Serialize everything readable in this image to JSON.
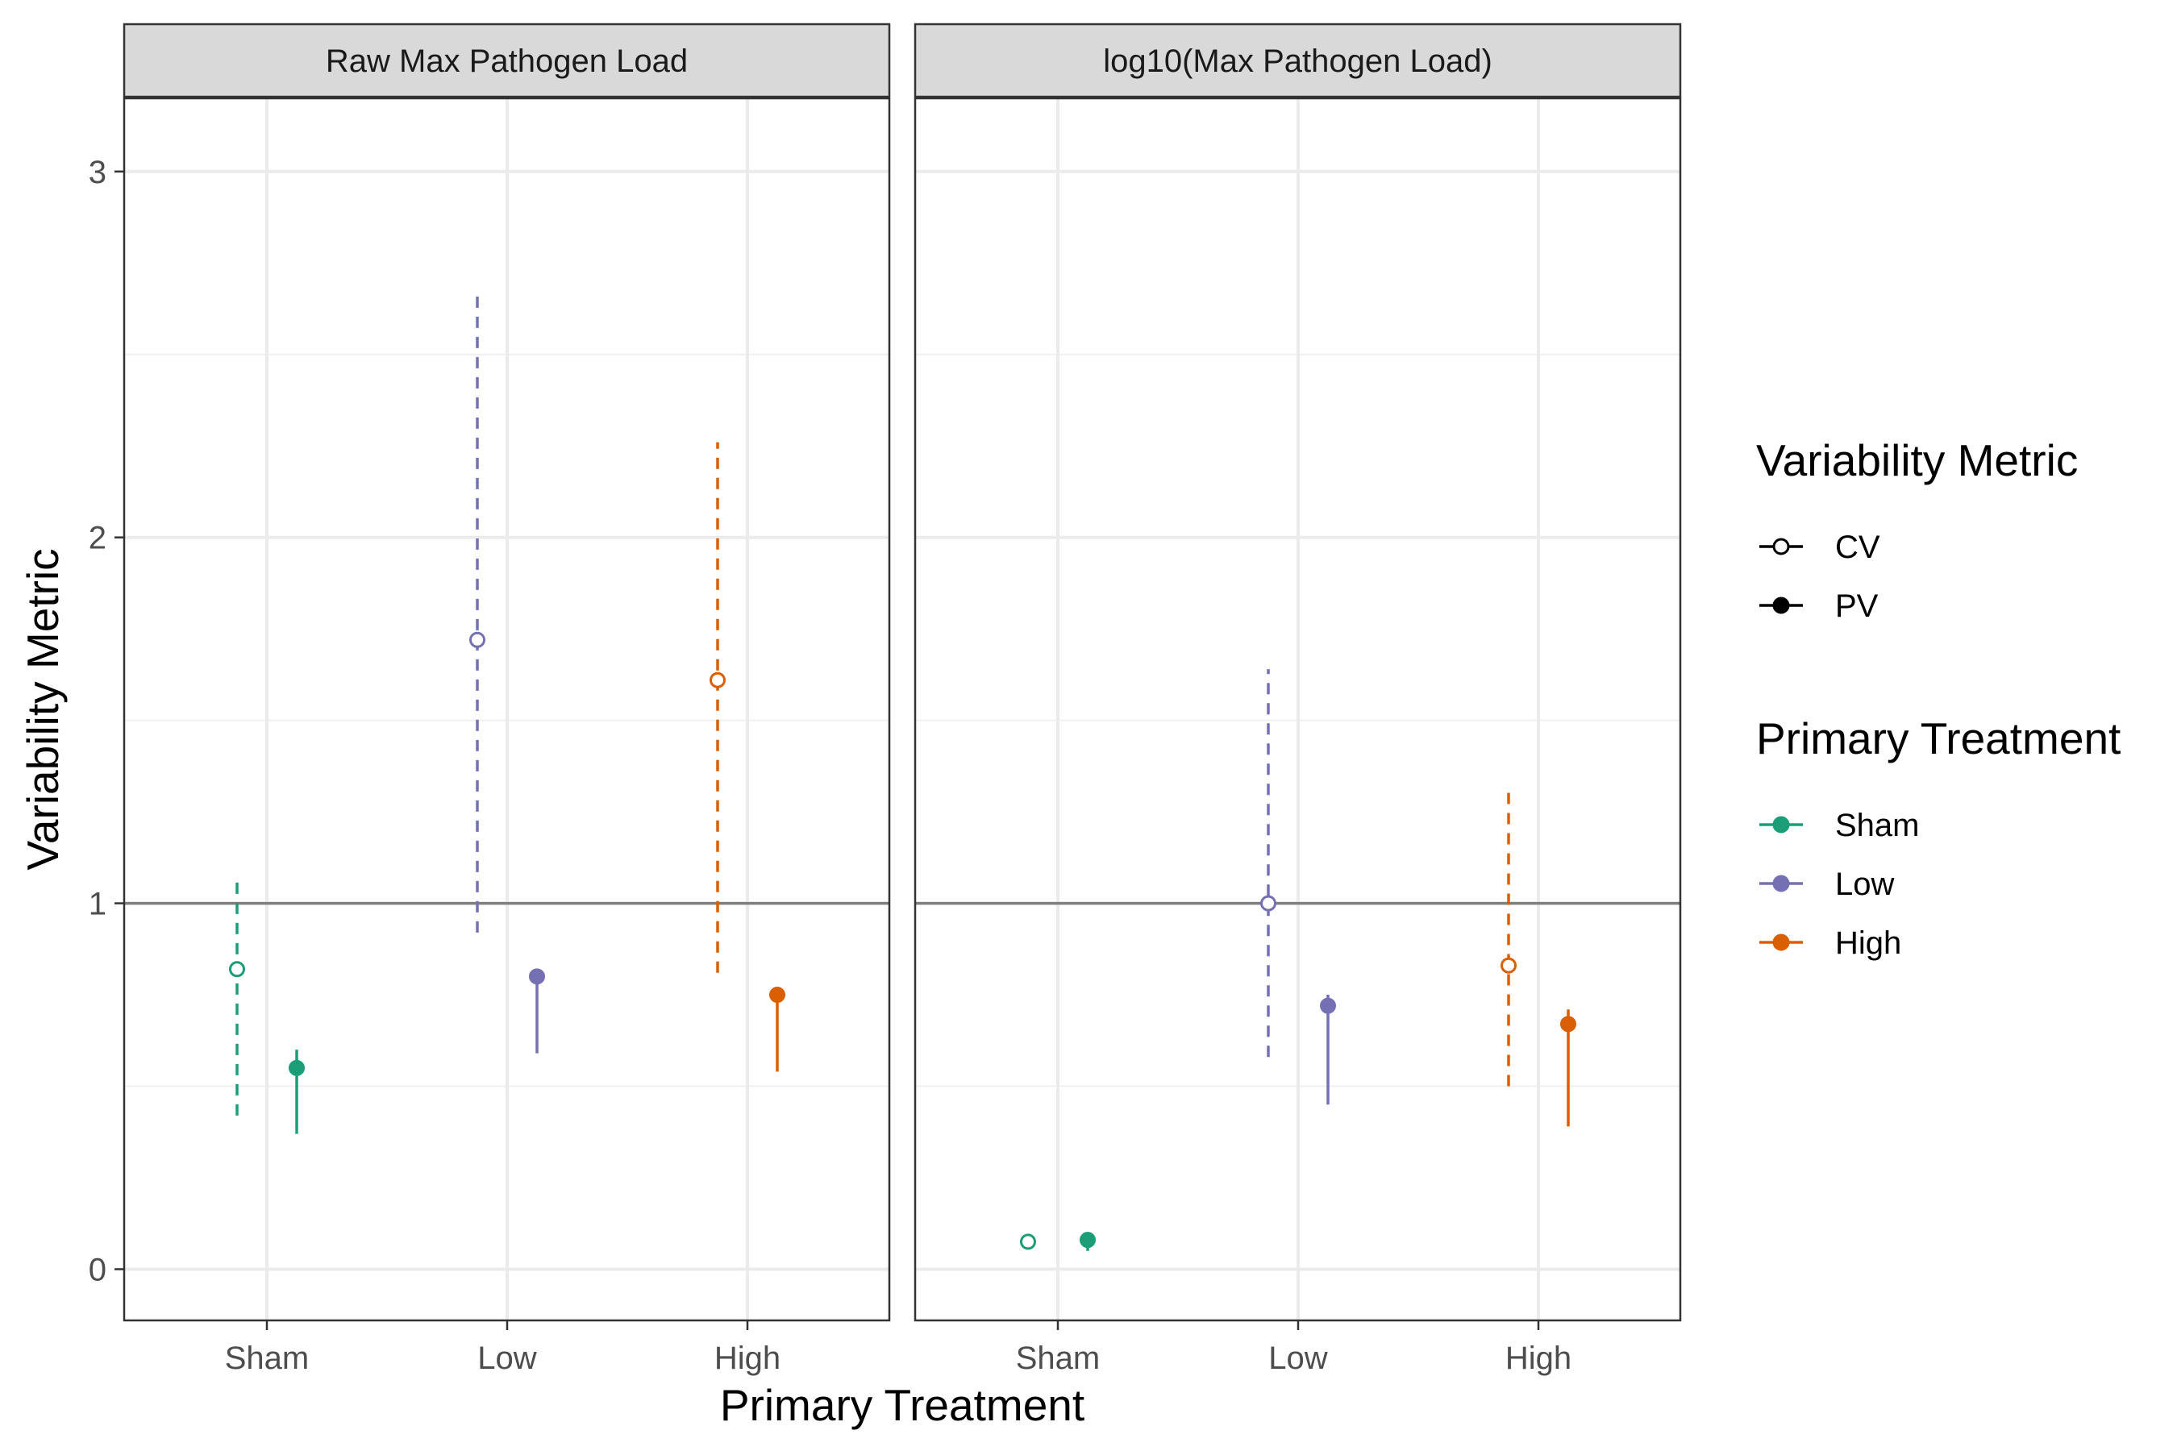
{
  "chart_data": {
    "type": "scatter",
    "xlabel": "Primary Treatment",
    "ylabel": "Variability Metric",
    "categories": [
      "Sham",
      "Low",
      "High"
    ],
    "ylim": [
      -0.14,
      3.2
    ],
    "yticks": [
      "0",
      "1",
      "2",
      "3"
    ],
    "reference_line": 1,
    "grid": true,
    "legend_position": "right",
    "colors": {
      "Sham": "#1b9e77",
      "Low": "#7570b3",
      "High": "#d95f02"
    },
    "metrics": [
      {
        "name": "CV",
        "marker": "open-circle",
        "line": "dashed"
      },
      {
        "name": "PV",
        "marker": "filled-circle",
        "line": "solid"
      }
    ],
    "panels": [
      {
        "title": "Raw Max Pathogen Load",
        "points": [
          {
            "treatment": "Sham",
            "metric": "CV",
            "value": 0.82,
            "lower": 0.42,
            "upper": 1.07
          },
          {
            "treatment": "Sham",
            "metric": "PV",
            "value": 0.55,
            "lower": 0.37,
            "upper": 0.6
          },
          {
            "treatment": "Low",
            "metric": "CV",
            "value": 1.72,
            "lower": 0.92,
            "upper": 2.67
          },
          {
            "treatment": "Low",
            "metric": "PV",
            "value": 0.8,
            "lower": 0.59,
            "upper": 0.81
          },
          {
            "treatment": "High",
            "metric": "CV",
            "value": 1.61,
            "lower": 0.81,
            "upper": 2.26
          },
          {
            "treatment": "High",
            "metric": "PV",
            "value": 0.75,
            "lower": 0.54,
            "upper": 0.76
          }
        ]
      },
      {
        "title": "log10(Max Pathogen Load)",
        "points": [
          {
            "treatment": "Sham",
            "metric": "CV",
            "value": 0.075,
            "lower": 0.065,
            "upper": 0.085
          },
          {
            "treatment": "Sham",
            "metric": "PV",
            "value": 0.08,
            "lower": 0.05,
            "upper": 0.09
          },
          {
            "treatment": "Low",
            "metric": "CV",
            "value": 1.0,
            "lower": 0.58,
            "upper": 1.64
          },
          {
            "treatment": "Low",
            "metric": "PV",
            "value": 0.72,
            "lower": 0.45,
            "upper": 0.75
          },
          {
            "treatment": "High",
            "metric": "CV",
            "value": 0.83,
            "lower": 0.5,
            "upper": 1.32
          },
          {
            "treatment": "High",
            "metric": "PV",
            "value": 0.67,
            "lower": 0.39,
            "upper": 0.71
          }
        ]
      }
    ],
    "legends": [
      {
        "title": "Variability Metric",
        "items": [
          "CV",
          "PV"
        ]
      },
      {
        "title": "Primary Treatment",
        "items": [
          "Sham",
          "Low",
          "High"
        ]
      }
    ]
  }
}
